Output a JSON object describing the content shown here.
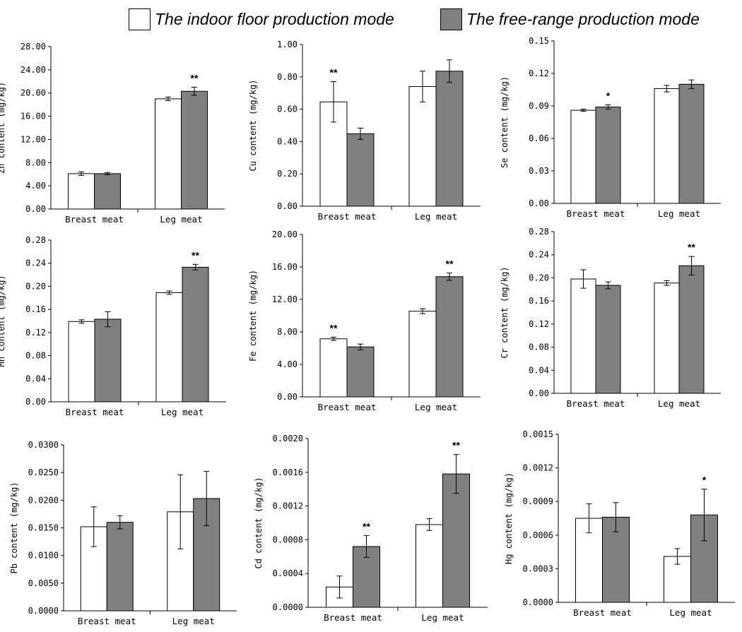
{
  "legend": {
    "indoor_label": "The indoor floor production mode",
    "freerange_label": "The free-range production mode",
    "indoor_color": "#ffffff",
    "freerange_color": "#808080"
  },
  "chart_data": [
    {
      "type": "bar",
      "ylabel": "Zn content (mg/kg)",
      "categories": [
        "Breast meat",
        "Leg meat"
      ],
      "ylim": [
        0,
        28
      ],
      "yticks": [
        "0.00",
        "4.00",
        "8.00",
        "12.00",
        "16.00",
        "20.00",
        "24.00",
        "28.00"
      ],
      "series": [
        {
          "values": [
            6.1,
            19.0
          ],
          "errors": [
            0.3,
            0.3
          ]
        },
        {
          "values": [
            6.1,
            20.3
          ],
          "errors": [
            0.2,
            0.7
          ]
        }
      ],
      "annotations": [
        {
          "category": 1,
          "series": 1,
          "text": "**"
        }
      ]
    },
    {
      "type": "bar",
      "ylabel": "Cu content (mg/kg)",
      "categories": [
        "Breast meat",
        "Leg meat"
      ],
      "ylim": [
        0,
        1
      ],
      "yticks": [
        "0.00",
        "0.20",
        "0.40",
        "0.60",
        "0.80",
        "1.00"
      ],
      "series": [
        {
          "values": [
            0.645,
            0.74
          ],
          "errors": [
            0.125,
            0.095
          ]
        },
        {
          "values": [
            0.448,
            0.835
          ],
          "errors": [
            0.035,
            0.07
          ]
        }
      ],
      "annotations": [
        {
          "category": 0,
          "series": 0,
          "text": "**"
        }
      ]
    },
    {
      "type": "bar",
      "ylabel": "Se content (mg/kg)",
      "categories": [
        "Breast meat",
        "Leg meat"
      ],
      "ylim": [
        0,
        0.15
      ],
      "yticks": [
        "0.00",
        "0.03",
        "0.06",
        "0.09",
        "0.12",
        "0.15"
      ],
      "series": [
        {
          "values": [
            0.086,
            0.106
          ],
          "errors": [
            0.001,
            0.003
          ]
        },
        {
          "values": [
            0.089,
            0.11
          ],
          "errors": [
            0.002,
            0.004
          ]
        }
      ],
      "annotations": [
        {
          "category": 0,
          "series": 1,
          "text": "*"
        }
      ]
    },
    {
      "type": "bar",
      "ylabel": "Mn content (mg/kg)",
      "categories": [
        "Breast meat",
        "Leg meat"
      ],
      "ylim": [
        0,
        0.28
      ],
      "yticks": [
        "0.00",
        "0.04",
        "0.08",
        "0.12",
        "0.16",
        "0.20",
        "0.24",
        "0.28"
      ],
      "series": [
        {
          "values": [
            0.139,
            0.189
          ],
          "errors": [
            0.003,
            0.003
          ]
        },
        {
          "values": [
            0.143,
            0.233
          ],
          "errors": [
            0.013,
            0.005
          ]
        }
      ],
      "annotations": [
        {
          "category": 1,
          "series": 1,
          "text": "**"
        }
      ]
    },
    {
      "type": "bar",
      "ylabel": "Fe content (mg/kg)",
      "categories": [
        "Breast meat",
        "Leg meat"
      ],
      "ylim": [
        0,
        20
      ],
      "yticks": [
        "0.00",
        "4.00",
        "8.00",
        "12.00",
        "16.00",
        "20.00"
      ],
      "series": [
        {
          "values": [
            7.15,
            10.55
          ],
          "errors": [
            0.2,
            0.3
          ]
        },
        {
          "values": [
            6.15,
            14.8
          ],
          "errors": [
            0.35,
            0.45
          ]
        }
      ],
      "annotations": [
        {
          "category": 0,
          "series": 0,
          "text": "**"
        },
        {
          "category": 1,
          "series": 1,
          "text": "**"
        }
      ]
    },
    {
      "type": "bar",
      "ylabel": "Cr content (mg/kg)",
      "categories": [
        "Breast meat",
        "Leg meat"
      ],
      "ylim": [
        0,
        0.28
      ],
      "yticks": [
        "0.00",
        "0.04",
        "0.08",
        "0.12",
        "0.16",
        "0.20",
        "0.24",
        "0.28"
      ],
      "series": [
        {
          "values": [
            0.198,
            0.191
          ],
          "errors": [
            0.016,
            0.004
          ]
        },
        {
          "values": [
            0.187,
            0.221
          ],
          "errors": [
            0.006,
            0.016
          ]
        }
      ],
      "annotations": [
        {
          "category": 1,
          "series": 1,
          "text": "**"
        }
      ]
    },
    {
      "type": "bar",
      "ylabel": "Pb content (mg/kg)",
      "categories": [
        "Breast meat",
        "Leg meat"
      ],
      "ylim": [
        0,
        0.03
      ],
      "yticks": [
        "0.0000",
        "0.0050",
        "0.0100",
        "0.0150",
        "0.0200",
        "0.0250",
        "0.0300"
      ],
      "series": [
        {
          "values": [
            0.0152,
            0.0179
          ],
          "errors": [
            0.0036,
            0.0067
          ]
        },
        {
          "values": [
            0.016,
            0.0203
          ],
          "errors": [
            0.0012,
            0.0049
          ]
        }
      ],
      "annotations": []
    },
    {
      "type": "bar",
      "ylabel": "Cd content (mg/kg)",
      "categories": [
        "Breast meat",
        "Leg meat"
      ],
      "ylim": [
        0,
        0.002
      ],
      "yticks": [
        "0.0000",
        "0.0004",
        "0.0008",
        "0.0012",
        "0.0016",
        "0.0020"
      ],
      "series": [
        {
          "values": [
            0.00024,
            0.00098
          ],
          "errors": [
            0.00013,
            7e-05
          ]
        },
        {
          "values": [
            0.00072,
            0.00158
          ],
          "errors": [
            0.00013,
            0.00023
          ]
        }
      ],
      "annotations": [
        {
          "category": 0,
          "series": 1,
          "text": "**"
        },
        {
          "category": 1,
          "series": 1,
          "text": "**"
        }
      ]
    },
    {
      "type": "bar",
      "ylabel": "Hg content (mg/kg)",
      "categories": [
        "Breast meat",
        "Leg meat"
      ],
      "ylim": [
        0,
        0.0015
      ],
      "yticks": [
        "0.0000",
        "0.0003",
        "0.0006",
        "0.0009",
        "0.0012",
        "0.0015"
      ],
      "series": [
        {
          "values": [
            0.00075,
            0.00041
          ],
          "errors": [
            0.00013,
            7e-05
          ]
        },
        {
          "values": [
            0.00076,
            0.00078
          ],
          "errors": [
            0.00013,
            0.00023
          ]
        }
      ],
      "annotations": [
        {
          "category": 1,
          "series": 1,
          "text": "*"
        }
      ]
    }
  ]
}
